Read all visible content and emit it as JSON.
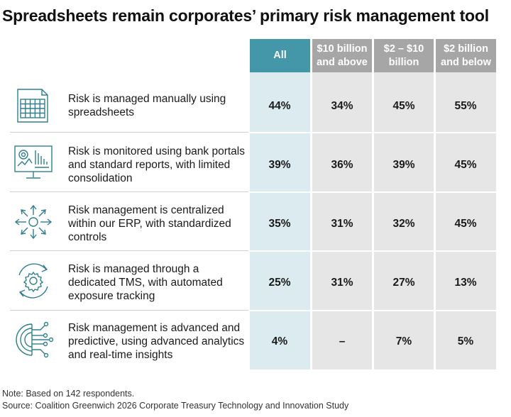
{
  "title": "Spreadsheets remain corporates’ primary risk management tool",
  "columns": [
    {
      "label": "All",
      "color": "#4397a8"
    },
    {
      "label": "$10 billion and above",
      "color": "#a6a6a6"
    },
    {
      "label": "$2 – $10 billion",
      "color": "#a6a6a6"
    },
    {
      "label": "$2 billion and below",
      "color": "#a6a6a6"
    }
  ],
  "column_fill": {
    "all": "#dbebf0",
    "others": "#e6e6e6"
  },
  "rows": [
    {
      "label": "Risk is managed manually using spreadsheets",
      "icon": "spreadsheet-icon",
      "values": [
        "44%",
        "34%",
        "45%",
        "55%"
      ]
    },
    {
      "label": "Risk is monitored using bank portals and standard reports, with limited consolidation",
      "icon": "monitor-dashboard-icon",
      "values": [
        "39%",
        "36%",
        "39%",
        "45%"
      ]
    },
    {
      "label": "Risk management is centralized within our ERP, with standardized controls",
      "icon": "centralized-arrows-icon",
      "values": [
        "35%",
        "31%",
        "32%",
        "45%"
      ]
    },
    {
      "label": "Risk is managed through a dedicated TMS, with automated exposure tracking",
      "icon": "gear-cycle-icon",
      "values": [
        "25%",
        "31%",
        "27%",
        "13%"
      ]
    },
    {
      "label": "Risk management is advanced and predictive, using advanced analytics and real-time insights",
      "icon": "circuit-brain-icon",
      "values": [
        "4%",
        "–",
        "7%",
        "5%"
      ]
    }
  ],
  "chart_data": {
    "type": "table",
    "title": "Spreadsheets remain corporates’ primary risk management tool",
    "columns": [
      "All",
      "$10 billion and above",
      "$2 – $10 billion",
      "$2 billion and below"
    ],
    "rows": [
      "Risk is managed manually using spreadsheets",
      "Risk is monitored using bank portals and standard reports, with limited consolidation",
      "Risk management is centralized within our ERP, with standardized controls",
      "Risk is managed through a dedicated TMS, with automated exposure tracking",
      "Risk management is advanced and predictive, using advanced analytics and real-time insights"
    ],
    "values": [
      [
        44,
        34,
        45,
        55
      ],
      [
        39,
        36,
        39,
        45
      ],
      [
        35,
        31,
        32,
        45
      ],
      [
        25,
        31,
        27,
        13
      ],
      [
        4,
        null,
        7,
        5
      ]
    ],
    "unit": "%"
  },
  "footer": {
    "note": "Note: Based on 142 respondents.",
    "source": "Source: Coalition Greenwich 2026 Corporate Treasury Technology and Innovation Study"
  }
}
